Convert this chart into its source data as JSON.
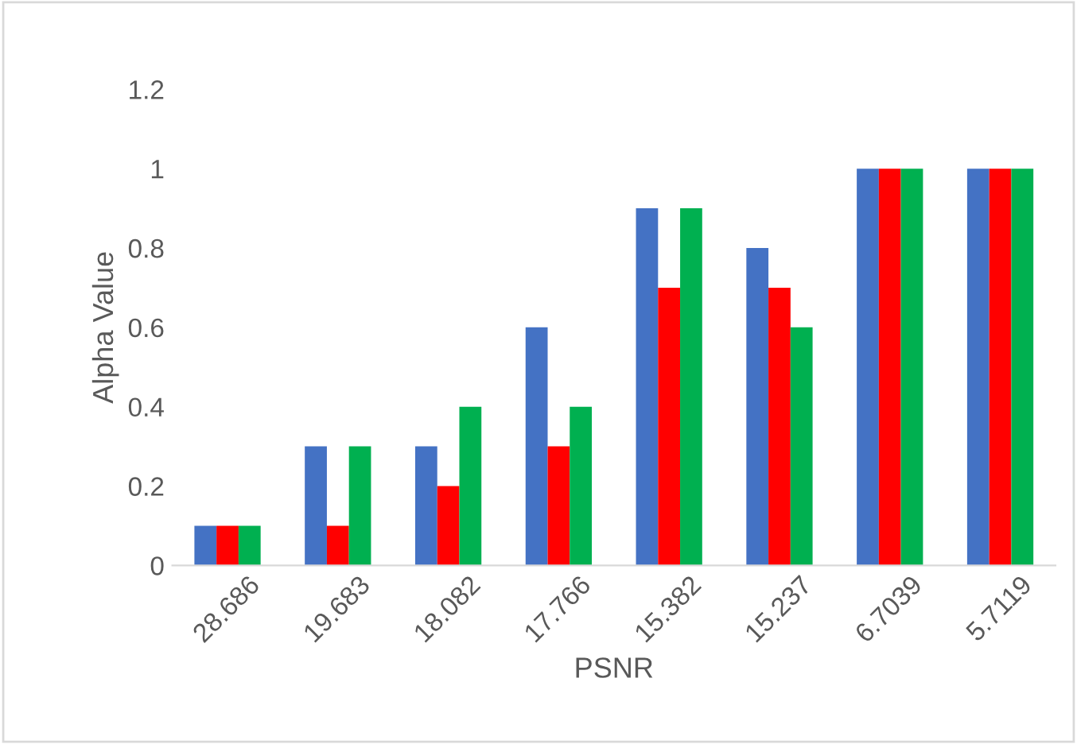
{
  "chart_data": {
    "type": "bar",
    "xlabel": "PSNR",
    "ylabel": "Alpha Value",
    "categories": [
      "28.686",
      "19.683",
      "18.082",
      "17.766",
      "15.382",
      "15.237",
      "6.7039",
      "5.7119"
    ],
    "series": [
      {
        "color": "#4472c4",
        "values": [
          0.1,
          0.3,
          0.3,
          0.6,
          0.9,
          0.8,
          1,
          1
        ]
      },
      {
        "color": "#ff0000",
        "values": [
          0.1,
          0.1,
          0.2,
          0.3,
          0.7,
          0.7,
          1,
          1
        ]
      },
      {
        "color": "#00b050",
        "values": [
          0.1,
          0.3,
          0.4,
          0.4,
          0.9,
          0.6,
          1,
          1
        ]
      }
    ],
    "ylim": [
      0,
      1.2
    ],
    "yticks": [
      0,
      0.2,
      0.4,
      0.6,
      0.8,
      1,
      1.2
    ],
    "grid": false,
    "legend": false
  }
}
